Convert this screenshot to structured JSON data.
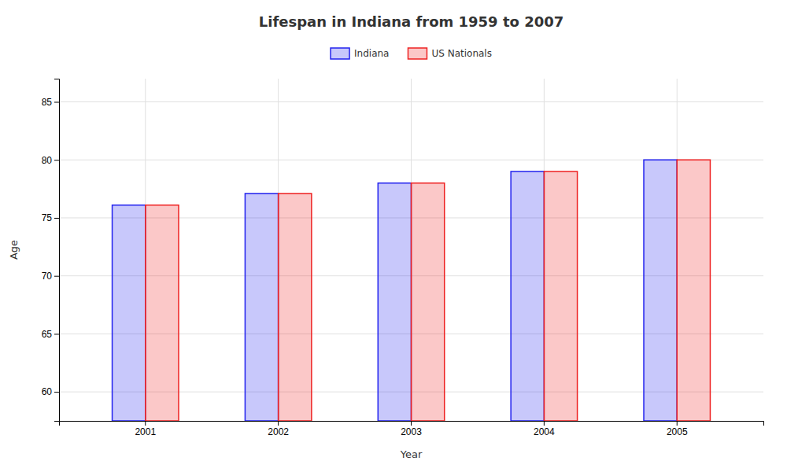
{
  "chart_data": {
    "type": "bar",
    "title": "Lifespan in Indiana from 1959 to 2007",
    "x_label": "Year",
    "y_label": "Age",
    "categories": [
      "2001",
      "2002",
      "2003",
      "2004",
      "2005"
    ],
    "series": [
      {
        "name": "Indiana",
        "color": "#2222ee",
        "values": [
          76.1,
          77.1,
          78.0,
          79.0,
          80.0
        ]
      },
      {
        "name": "US Nationals",
        "color": "#ee2222",
        "values": [
          76.1,
          77.1,
          78.0,
          79.0,
          80.0
        ]
      }
    ],
    "ylim": [
      57.5,
      87
    ],
    "yticks": [
      60,
      65,
      70,
      75,
      80,
      85
    ],
    "grid": true,
    "legend": "top"
  }
}
